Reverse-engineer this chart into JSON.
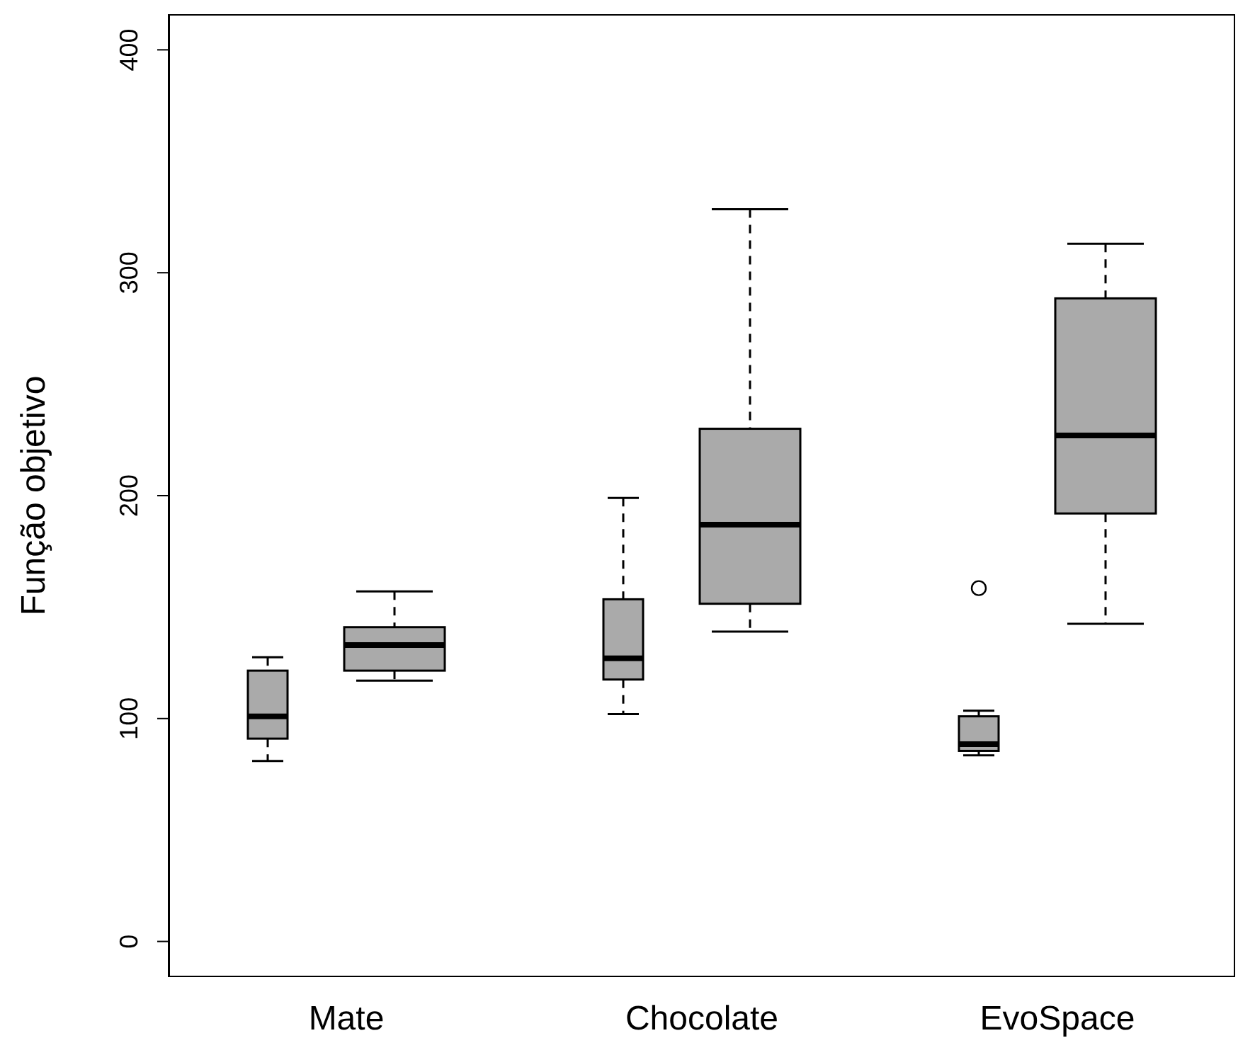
{
  "chart_data": {
    "type": "box",
    "ylabel": "Função objetivo",
    "categories": [
      "Mate",
      "Chocolate",
      "EvoSpace"
    ],
    "ylim": [
      -16,
      416
    ],
    "yticks": [
      0,
      100,
      200,
      300,
      400
    ],
    "series": [
      {
        "color": "#aaaaaa",
        "boxes": [
          {
            "low": 81,
            "q1": 91,
            "median": 101,
            "q3": 121.5,
            "high": 127.5
          },
          {
            "low": 102,
            "q1": 117.5,
            "median": 127,
            "q3": 153.5,
            "high": 199
          },
          {
            "low": 83.5,
            "q1": 85.5,
            "median": 88.5,
            "q3": 101,
            "high": 103.5,
            "outliers": [
              158.5
            ]
          }
        ]
      },
      {
        "color": "#aaaaaa",
        "boxes": [
          {
            "low": 117,
            "q1": 121.5,
            "median": 133,
            "q3": 141,
            "high": 157
          },
          {
            "low": 139,
            "q1": 151.5,
            "median": 187,
            "q3": 230,
            "high": 328.5
          },
          {
            "low": 142.5,
            "q1": 192,
            "median": 227,
            "q3": 288.5,
            "high": 313
          }
        ]
      }
    ]
  }
}
